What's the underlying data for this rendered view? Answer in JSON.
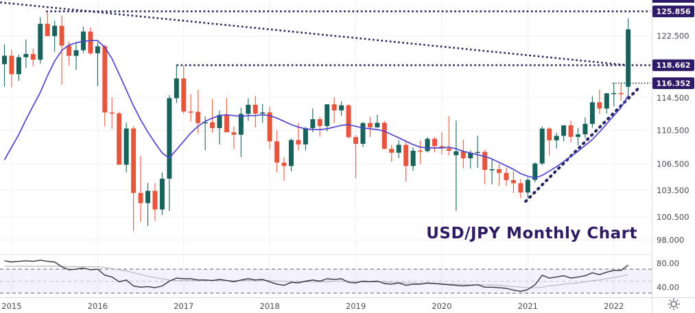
{
  "title": "USD/JPY Monthly Chart",
  "price_axis": {
    "ticks": [
      {
        "label": "122.500",
        "price": 122.5
      },
      {
        "label": "114.500",
        "price": 114.5
      },
      {
        "label": "110.500",
        "price": 110.5
      },
      {
        "label": "106.500",
        "price": 106.5
      },
      {
        "label": "103.500",
        "price": 103.5
      },
      {
        "label": "100.500",
        "price": 100.5
      },
      {
        "label": "98.000",
        "price": 98.0
      }
    ]
  },
  "indicator_axis": {
    "ticks": [
      {
        "label": "80.00",
        "value": 80
      },
      {
        "label": "40.00",
        "value": 40
      }
    ]
  },
  "time_axis": {
    "years": [
      "2015",
      "2016",
      "2017",
      "2018",
      "2019",
      "2020",
      "2021",
      "2022"
    ]
  },
  "colors": {
    "up": "#17635c",
    "down": "#e7553c",
    "ma": "#5043cf",
    "trend": "#26265c",
    "badge_bg": "#2e1a66",
    "badge_text": "#ffffff",
    "title": "#2f1b64",
    "axis_text": "#4b4b55",
    "grid": "#eef0f4",
    "separator": "#d8d8de",
    "pane_divider": "#e4e4e9",
    "rsi_line": "#33333a",
    "rsi_ma_line": "#b9b9c0",
    "band_fill": "rgba(136,118,216,0.10)",
    "band_edge": "#5b5b66",
    "band_mid": "#c3c3ca"
  },
  "chart_data": {
    "type": "candlestick",
    "symbol": "USD/JPY",
    "timeframe": "Monthly",
    "title": "USD/JPY Monthly Chart",
    "start_month": "2014-12",
    "interval": "1M",
    "y_scale": "log",
    "y_ticks": [
      122.5,
      114.5,
      110.5,
      106.5,
      103.5,
      100.5,
      98.0
    ],
    "rsi_ticks": [
      80,
      40
    ],
    "rsi_band": [
      70,
      50,
      30
    ],
    "candles_ohlc": [
      [
        118.8,
        121.4,
        115.9,
        119.9
      ],
      [
        119.9,
        120.7,
        115.85,
        117.5
      ],
      [
        117.5,
        120.05,
        116.65,
        119.7
      ],
      [
        119.7,
        122.04,
        118.33,
        120.13
      ],
      [
        120.13,
        120.85,
        118.53,
        119.38
      ],
      [
        119.38,
        125.05,
        118.88,
        124.15
      ],
      [
        124.15,
        125.86,
        122.46,
        122.5
      ],
      [
        122.5,
        124.58,
        120.41,
        123.89
      ],
      [
        123.89,
        125.28,
        116.15,
        121.23
      ],
      [
        121.23,
        121.75,
        118.61,
        119.88
      ],
      [
        119.88,
        121.59,
        118.06,
        120.62
      ],
      [
        120.62,
        123.77,
        120.26,
        123.11
      ],
      [
        123.11,
        123.67,
        120.01,
        120.22
      ],
      [
        120.22,
        121.69,
        115.97,
        121.14
      ],
      [
        121.14,
        121.33,
        110.99,
        112.69
      ],
      [
        112.69,
        114.56,
        110.67,
        112.57
      ],
      [
        112.57,
        112.75,
        106.91,
        106.43
      ],
      [
        106.43,
        111.45,
        105.55,
        110.73
      ],
      [
        110.73,
        111.02,
        98.99,
        103.2
      ],
      [
        103.2,
        107.49,
        99.99,
        102.06
      ],
      [
        102.06,
        104.32,
        99.54,
        103.43
      ],
      [
        103.43,
        104.32,
        100.09,
        101.35
      ],
      [
        101.35,
        105.53,
        100.76,
        104.82
      ],
      [
        104.82,
        114.83,
        101.19,
        114.46
      ],
      [
        114.46,
        118.66,
        113.86,
        116.96
      ],
      [
        116.96,
        118.61,
        112.57,
        112.8
      ],
      [
        112.8,
        114.95,
        111.59,
        112.77
      ],
      [
        112.77,
        115.5,
        110.11,
        111.39
      ],
      [
        111.39,
        112.2,
        108.13,
        111.49
      ],
      [
        111.49,
        114.37,
        110.24,
        110.78
      ],
      [
        110.78,
        112.92,
        108.81,
        112.39
      ],
      [
        112.39,
        114.49,
        110.62,
        110.27
      ],
      [
        110.27,
        110.95,
        108.27,
        109.98
      ],
      [
        109.98,
        113.26,
        107.32,
        112.51
      ],
      [
        112.51,
        114.45,
        111.65,
        113.64
      ],
      [
        113.64,
        114.73,
        110.85,
        112.54
      ],
      [
        112.54,
        113.75,
        111.4,
        112.69
      ],
      [
        112.69,
        113.39,
        108.28,
        109.19
      ],
      [
        109.19,
        110.48,
        105.55,
        106.68
      ],
      [
        106.68,
        107.3,
        104.56,
        106.28
      ],
      [
        106.28,
        109.53,
        105.66,
        109.34
      ],
      [
        109.34,
        111.4,
        108.11,
        108.82
      ],
      [
        108.82,
        110.9,
        108.12,
        110.76
      ],
      [
        110.76,
        113.18,
        110.28,
        111.86
      ],
      [
        111.86,
        112.15,
        109.77,
        111.03
      ],
      [
        111.03,
        113.71,
        110.38,
        113.7
      ],
      [
        113.7,
        114.55,
        111.38,
        112.94
      ],
      [
        112.94,
        114.04,
        112.3,
        113.57
      ],
      [
        113.57,
        113.71,
        109.55,
        109.69
      ],
      [
        109.69,
        109.93,
        104.87,
        108.89
      ],
      [
        108.89,
        111.5,
        108.5,
        111.39
      ],
      [
        111.39,
        112.13,
        109.7,
        110.86
      ],
      [
        110.86,
        112.4,
        110.84,
        111.42
      ],
      [
        111.42,
        111.66,
        108.25,
        108.29
      ],
      [
        108.29,
        108.72,
        106.78,
        107.84
      ],
      [
        107.84,
        109.31,
        107.21,
        108.77
      ],
      [
        108.77,
        109.31,
        104.46,
        106.28
      ],
      [
        106.28,
        108.47,
        105.73,
        108.08
      ],
      [
        108.08,
        109.28,
        106.48,
        108.03
      ],
      [
        108.03,
        109.72,
        107.88,
        109.49
      ],
      [
        109.49,
        109.72,
        107.88,
        108.61
      ],
      [
        108.61,
        110.29,
        107.65,
        108.35
      ],
      [
        108.35,
        112.22,
        107.51,
        108.08
      ],
      [
        107.54,
        111.71,
        101.18,
        108.0
      ],
      [
        108.0,
        109.38,
        106.04,
        107.18
      ],
      [
        107.18,
        108.09,
        105.99,
        107.83
      ],
      [
        107.83,
        109.85,
        106.07,
        107.93
      ],
      [
        107.93,
        108.17,
        104.19,
        105.83
      ],
      [
        105.83,
        107.05,
        104.18,
        105.91
      ],
      [
        105.91,
        106.55,
        104.0,
        105.48
      ],
      [
        105.48,
        106.11,
        104.02,
        104.66
      ],
      [
        104.66,
        105.68,
        103.18,
        104.3
      ],
      [
        104.3,
        104.76,
        102.59,
        103.25
      ],
      [
        103.25,
        104.94,
        102.59,
        104.68
      ],
      [
        104.68,
        106.7,
        104.41,
        106.57
      ],
      [
        106.57,
        110.97,
        106.37,
        110.72
      ],
      [
        110.72,
        110.85,
        107.48,
        109.31
      ],
      [
        109.31,
        110.2,
        108.34,
        109.84
      ],
      [
        109.84,
        111.11,
        109.19,
        111.11
      ],
      [
        111.11,
        111.66,
        109.06,
        109.72
      ],
      [
        109.72,
        110.8,
        108.72,
        110.02
      ],
      [
        110.02,
        112.08,
        109.59,
        111.29
      ],
      [
        111.29,
        114.7,
        110.82,
        113.95
      ],
      [
        113.95,
        115.52,
        112.53,
        113.17
      ],
      [
        113.17,
        115.08,
        112.53,
        115.08
      ],
      [
        115.08,
        116.35,
        113.47,
        115.11
      ],
      [
        115.11,
        116.34,
        114.16,
        114.96
      ],
      [
        115.9,
        124.9,
        114.8,
        123.4
      ]
    ],
    "ma_line": [
      107.0,
      108.5,
      110.0,
      111.8,
      113.5,
      115.2,
      117.3,
      119.2,
      120.6,
      121.3,
      121.6,
      121.8,
      121.9,
      121.9,
      121.0,
      119.5,
      117.5,
      115.5,
      113.5,
      111.8,
      110.3,
      109.0,
      107.8,
      107.2,
      108.2,
      109.2,
      110.2,
      111.0,
      111.6,
      112.0,
      112.3,
      112.4,
      112.3,
      112.2,
      112.3,
      112.3,
      112.4,
      112.3,
      112.0,
      111.6,
      111.2,
      110.9,
      110.7,
      110.6,
      110.6,
      110.7,
      110.9,
      111.1,
      111.2,
      111.0,
      110.8,
      110.7,
      110.6,
      110.4,
      110.0,
      109.6,
      109.2,
      108.8,
      108.5,
      108.4,
      108.4,
      108.4,
      108.5,
      108.3,
      108.0,
      107.8,
      107.6,
      107.4,
      107.1,
      106.7,
      106.3,
      105.9,
      105.4,
      105.1,
      104.9,
      105.2,
      105.7,
      106.2,
      106.8,
      107.4,
      108.0,
      108.7,
      109.4,
      110.3,
      111.3,
      112.3,
      113.3,
      114.8
    ],
    "rsi": [
      84,
      82,
      83,
      84,
      83,
      85,
      83,
      82,
      74,
      69,
      70,
      72,
      69,
      70,
      60,
      57,
      49,
      52,
      42,
      40,
      41,
      39,
      42,
      50,
      55,
      54,
      54,
      52,
      52,
      51,
      53,
      51,
      49,
      52,
      54,
      52,
      53,
      49,
      45,
      43,
      48,
      47,
      50,
      52,
      50,
      54,
      53,
      54,
      48,
      47,
      50,
      49,
      50,
      46,
      45,
      47,
      43,
      45,
      45,
      47,
      46,
      45,
      44,
      43,
      42,
      43,
      44,
      40,
      40,
      39,
      38,
      35,
      33,
      36,
      44,
      60,
      55,
      57,
      59,
      55,
      57,
      59,
      64,
      61,
      65,
      68,
      68,
      77
    ],
    "rsi_ma": [
      75,
      75,
      75,
      75,
      75,
      75,
      75,
      75,
      75,
      74,
      74,
      74,
      74,
      74,
      73,
      71,
      69,
      67,
      64,
      61,
      58,
      56,
      54,
      52,
      51,
      51,
      51,
      51,
      51,
      51,
      51,
      51,
      51,
      51,
      51,
      51,
      51,
      51,
      50,
      50,
      49,
      49,
      49,
      49,
      49,
      49,
      50,
      50,
      50,
      49,
      49,
      49,
      49,
      49,
      48,
      48,
      47,
      47,
      46,
      46,
      46,
      46,
      45,
      45,
      45,
      44,
      44,
      44,
      44,
      43,
      42,
      41,
      40,
      39,
      39,
      40,
      42,
      43,
      45,
      46,
      47,
      49,
      51,
      52,
      54,
      56,
      58,
      61
    ],
    "levels": [
      {
        "label": "125.856",
        "price": 125.856,
        "from_index": 5.8,
        "weight": "bold"
      },
      {
        "label": "118.662",
        "price": 118.662,
        "from_index": 24.0,
        "weight": "bold"
      },
      {
        "label": "116.352",
        "price": 116.352,
        "from_index": 84.8,
        "weight": "thin"
      }
    ],
    "trendlines": [
      {
        "name": "descending-resistance",
        "from_i": -0.6,
        "from_p": 127.1,
        "to_i": 86.9,
        "to_p": 118.66,
        "weight": "bold"
      },
      {
        "name": "rising-support",
        "from_i": 72.7,
        "from_p": 102.25,
        "to_i": 88.6,
        "to_p": 115.86,
        "weight": "heavy"
      }
    ],
    "legend_position": "none",
    "grid": true
  }
}
